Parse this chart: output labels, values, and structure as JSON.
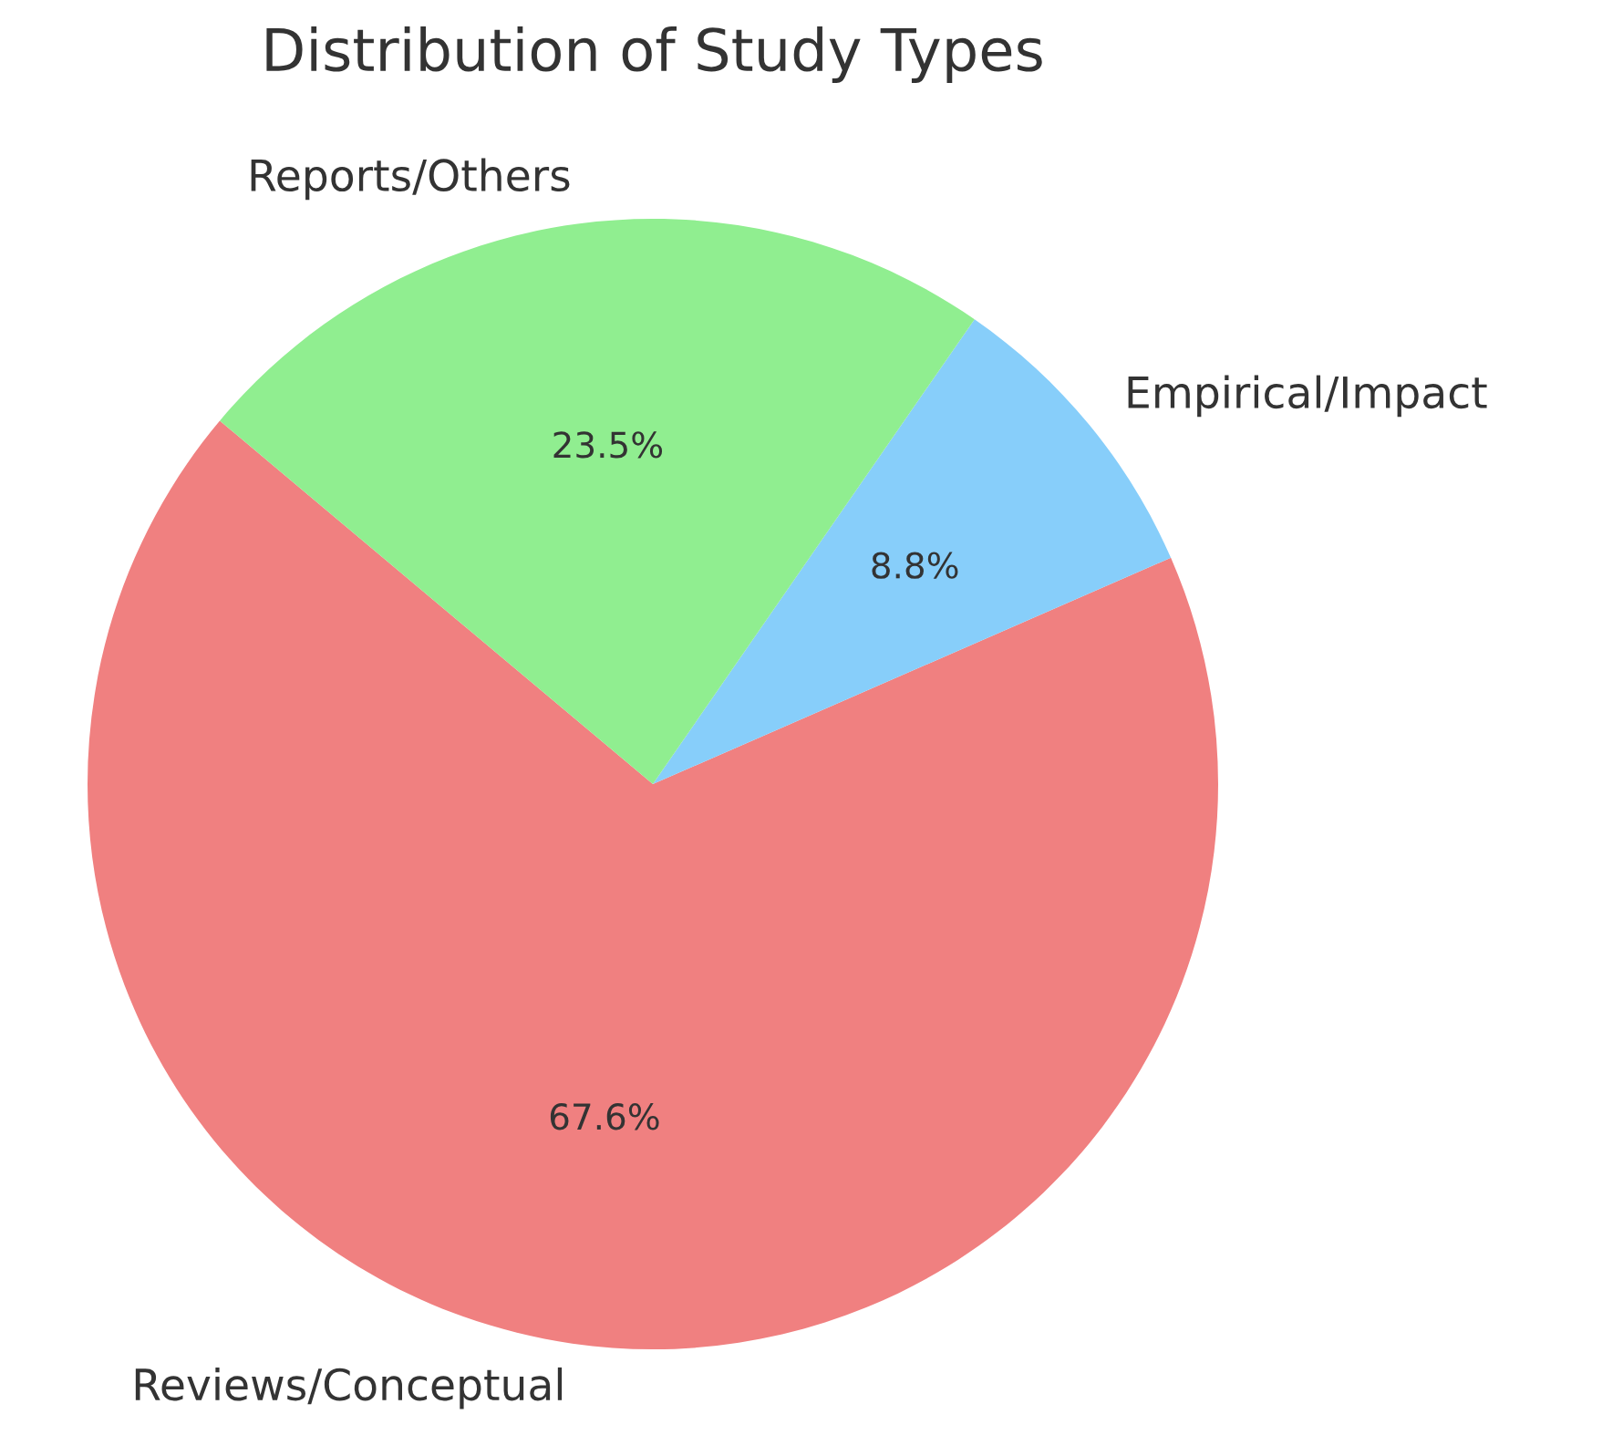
{
  "chart_data": {
    "type": "pie",
    "title": "Distribution of Study Types",
    "categories": [
      "Reviews/Conceptual",
      "Empirical/Impact",
      "Reports/Others"
    ],
    "values": [
      67.6,
      8.8,
      23.5
    ],
    "value_labels": [
      "67.6%",
      "8.8%",
      "23.5%"
    ],
    "colors": [
      "#f08080",
      "#87cefa",
      "#90ee90"
    ]
  }
}
